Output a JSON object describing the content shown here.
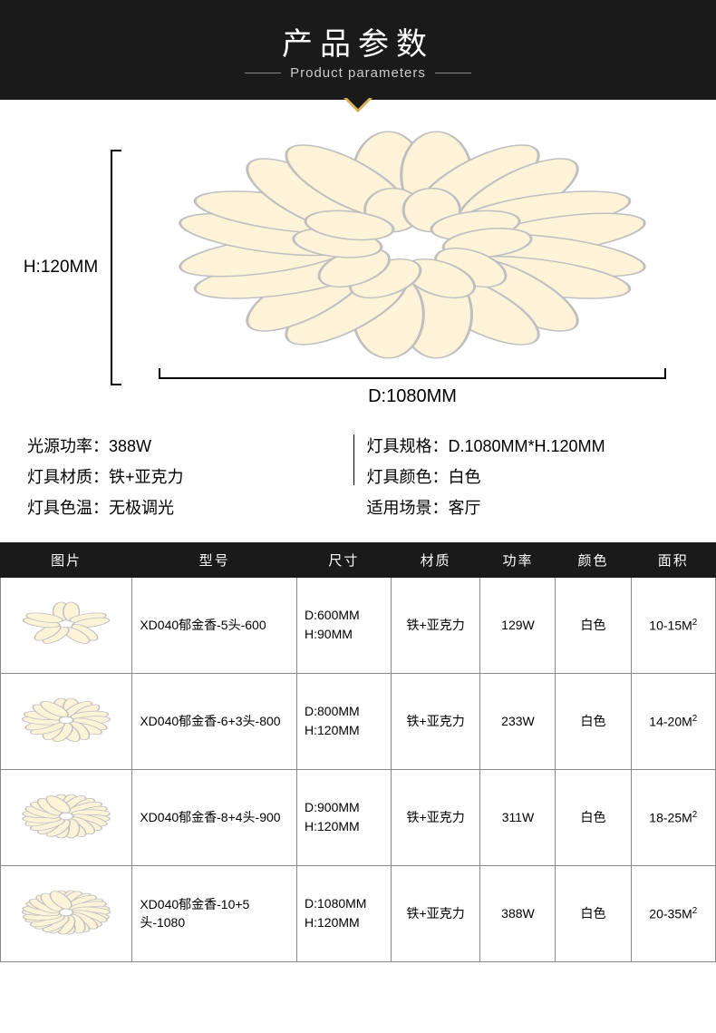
{
  "header": {
    "title_cn": "产品参数",
    "title_en": "Product parameters"
  },
  "colors": {
    "banner_bg": "#1a1a1a",
    "accent": "#d4b05a",
    "petal_fill": "#fdf3d8",
    "petal_stroke": "#bfbfbf",
    "table_border": "#888888"
  },
  "diagram": {
    "height_dim": "H:120MM",
    "width_dim": "D:1080MM"
  },
  "specs": {
    "left": [
      {
        "label": "光源功率：",
        "value": "388W"
      },
      {
        "label": "灯具材质：",
        "value": "铁+亚克力"
      },
      {
        "label": "灯具色温：",
        "value": "无极调光"
      }
    ],
    "right": [
      {
        "label": "灯具规格：",
        "value": "D.1080MM*H.120MM"
      },
      {
        "label": "灯具颜色：",
        "value": "白色"
      },
      {
        "label": "适用场景：",
        "value": "客厅"
      }
    ]
  },
  "table": {
    "columns": [
      "图片",
      "型号",
      "尺寸",
      "材质",
      "功率",
      "颜色",
      "面积"
    ],
    "rows": [
      {
        "petals": 5,
        "model": "XD040郁金香-5头-600",
        "size_d": "D:600MM",
        "size_h": "H:90MM",
        "material": "铁+亚克力",
        "power": "129W",
        "color": "白色",
        "area": "10-15M",
        "area_unit": "2"
      },
      {
        "petals": 9,
        "model": "XD040郁金香-6+3头-800",
        "size_d": "D:800MM",
        "size_h": "H:120MM",
        "material": "铁+亚克力",
        "power": "233W",
        "color": "白色",
        "area": "14-20M",
        "area_unit": "2"
      },
      {
        "petals": 12,
        "model": "XD040郁金香-8+4头-900",
        "size_d": "D:900MM",
        "size_h": "H:120MM",
        "material": "铁+亚克力",
        "power": "311W",
        "color": "白色",
        "area": "18-25M",
        "area_unit": "2"
      },
      {
        "petals": 15,
        "model": "XD040郁金香-10+5头-1080",
        "size_d": "D:1080MM",
        "size_h": "H:120MM",
        "material": "铁+亚克力",
        "power": "388W",
        "color": "白色",
        "area": "20-35M",
        "area_unit": "2"
      }
    ]
  }
}
